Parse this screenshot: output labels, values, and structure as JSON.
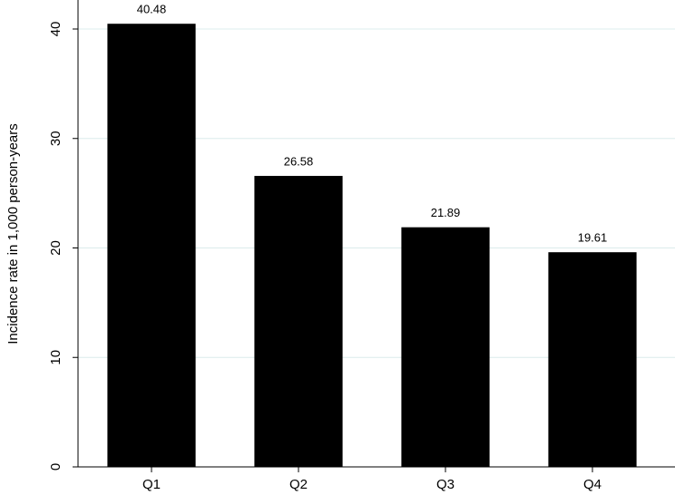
{
  "chart_data": {
    "type": "bar",
    "y_label": "Incidence rate in 1,000 person-years",
    "categories": [
      "Q1",
      "Q2",
      "Q3",
      "Q4"
    ],
    "values": [
      40.48,
      26.58,
      21.89,
      19.61
    ],
    "color": "#000000",
    "ylim": [
      0,
      42.65
    ],
    "yticks": [
      0,
      10,
      20,
      30,
      40
    ],
    "grid": true
  }
}
